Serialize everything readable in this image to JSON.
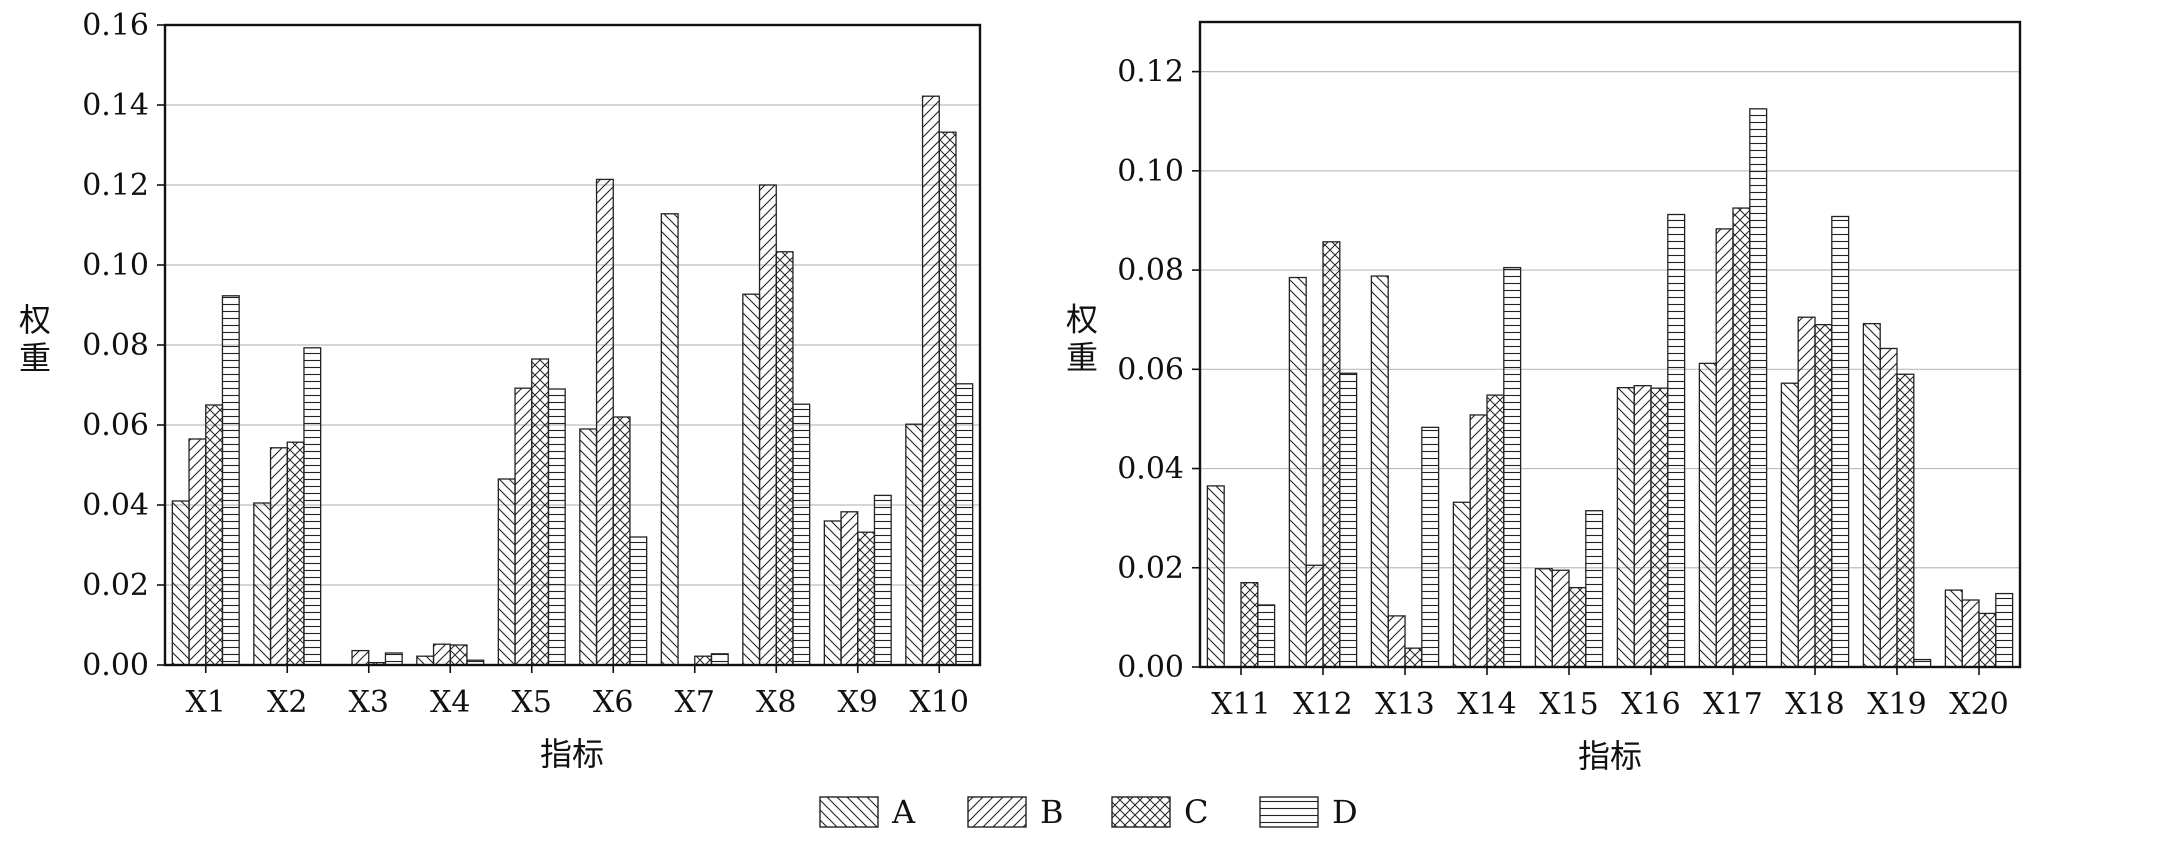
{
  "chart_data": [
    {
      "type": "bar",
      "xlabel": "指标",
      "ylabel": "权重",
      "ylim": [
        0,
        0.16
      ],
      "yticks": [
        "0.00",
        "0.02",
        "0.04",
        "0.06",
        "0.08",
        "0.10",
        "0.12",
        "0.14",
        "0.16"
      ],
      "grid": "horizontal",
      "categories": [
        "X1",
        "X2",
        "X3",
        "X4",
        "X5",
        "X6",
        "X7",
        "X8",
        "X9",
        "X10"
      ],
      "series": [
        {
          "name": "A",
          "values": [
            0.041,
            0.0405,
            0.0,
            0.0022,
            0.0465,
            0.059,
            0.1128,
            0.0927,
            0.036,
            0.0602
          ]
        },
        {
          "name": "B",
          "values": [
            0.0565,
            0.0543,
            0.0036,
            0.0052,
            0.0692,
            0.1214,
            0.0,
            0.12,
            0.0383,
            0.1422
          ]
        },
        {
          "name": "C",
          "values": [
            0.065,
            0.0557,
            0.0006,
            0.005,
            0.0765,
            0.062,
            0.0022,
            0.1033,
            0.0332,
            0.1332
          ]
        },
        {
          "name": "D",
          "values": [
            0.0923,
            0.0793,
            0.003,
            0.0012,
            0.069,
            0.032,
            0.0028,
            0.0652,
            0.0424,
            0.0703
          ]
        }
      ]
    },
    {
      "type": "bar",
      "xlabel": "指标",
      "ylabel": "权重",
      "ylim": [
        0,
        0.13
      ],
      "yticks": [
        "0.00",
        "0.02",
        "0.04",
        "0.06",
        "0.08",
        "0.10",
        "0.12"
      ],
      "grid": "horizontal",
      "categories": [
        "X11",
        "X12",
        "X13",
        "X14",
        "X15",
        "X16",
        "X17",
        "X18",
        "X19",
        "X20"
      ],
      "series": [
        {
          "name": "A",
          "values": [
            0.0365,
            0.0785,
            0.0788,
            0.0332,
            0.0198,
            0.0563,
            0.0612,
            0.0572,
            0.0692,
            0.0155
          ]
        },
        {
          "name": "B",
          "values": [
            0.0,
            0.0205,
            0.0103,
            0.0508,
            0.0195,
            0.0567,
            0.0883,
            0.0705,
            0.0642,
            0.0135
          ]
        },
        {
          "name": "C",
          "values": [
            0.017,
            0.0857,
            0.0038,
            0.0548,
            0.016,
            0.0562,
            0.0925,
            0.069,
            0.059,
            0.0108
          ]
        },
        {
          "name": "D",
          "values": [
            0.0125,
            0.0592,
            0.0483,
            0.0805,
            0.0315,
            0.0912,
            0.1125,
            0.0908,
            0.0015,
            0.0148
          ]
        }
      ]
    }
  ],
  "legend": {
    "placement": "bottom-center",
    "items": [
      "A",
      "B",
      "C",
      "D"
    ]
  },
  "colors": {
    "bar_fill": "#ffffff",
    "bar_stroke": "#222222",
    "hatch": "#222222",
    "grid": "#bdbdbd",
    "axis": "#111111"
  }
}
